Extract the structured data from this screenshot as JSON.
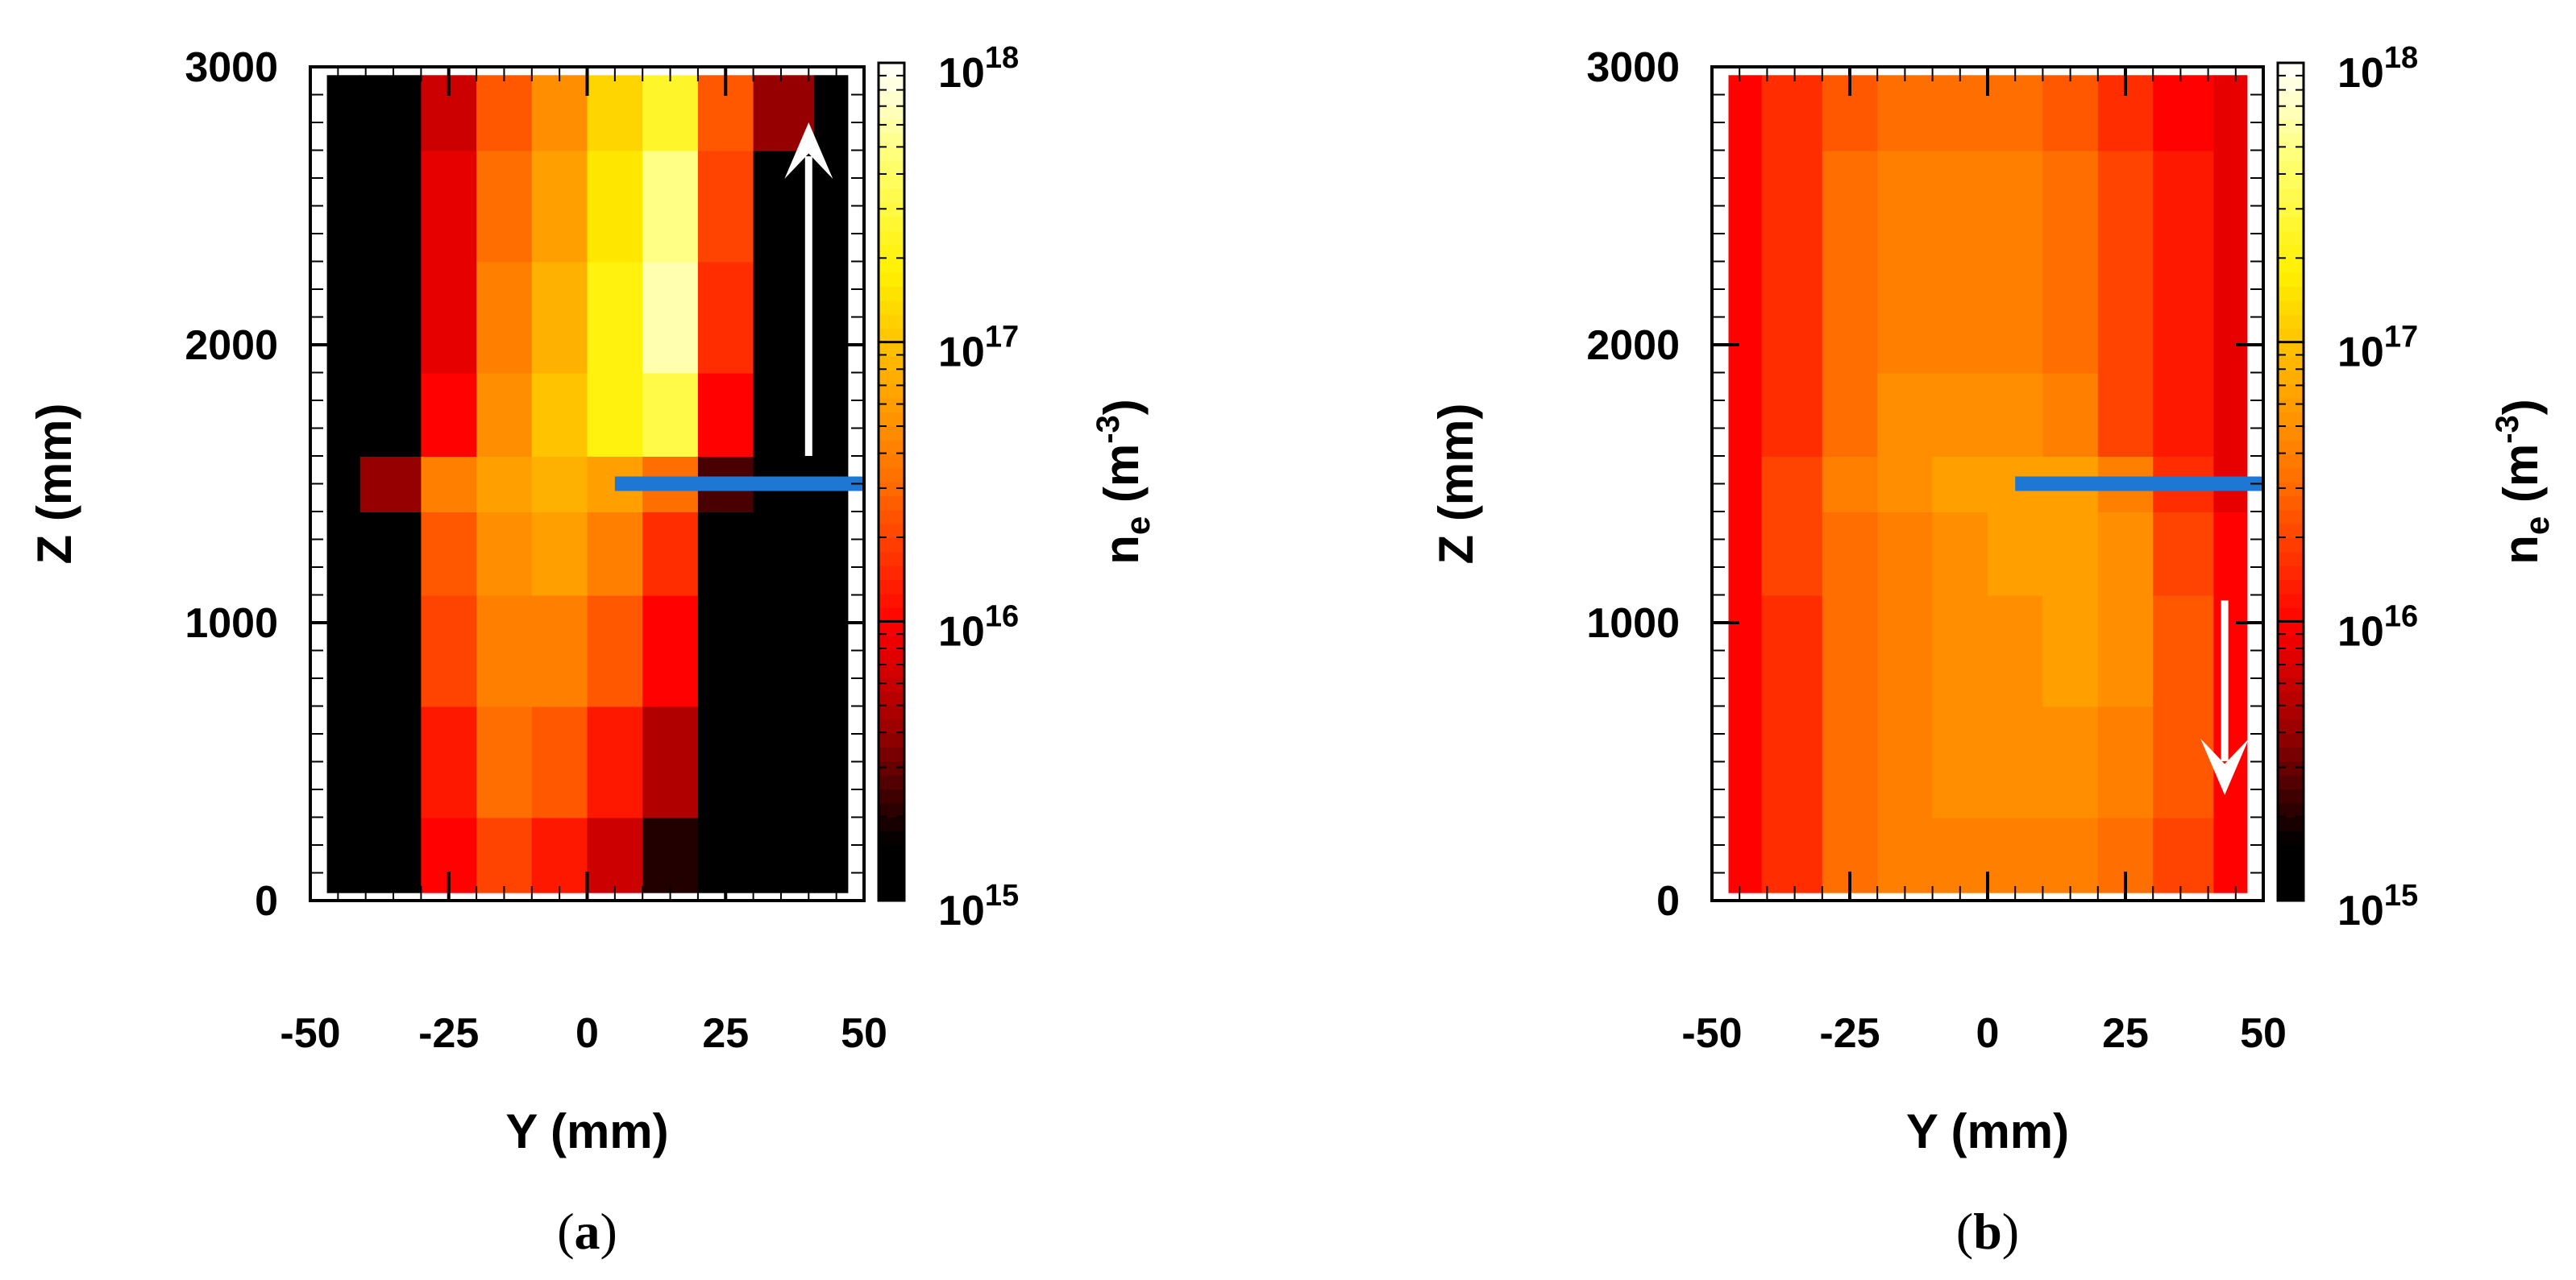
{
  "chart_data": [
    {
      "type": "heatmap",
      "panel_label": "a",
      "xlabel": "Y (mm)",
      "ylabel": "Z (mm)",
      "xlim": [
        -50,
        50
      ],
      "ylim": [
        0,
        3000
      ],
      "x_ticks": [
        -50,
        -25,
        0,
        25,
        50
      ],
      "y_ticks": [
        0,
        1000,
        2000,
        3000
      ],
      "colorbar": {
        "label_base": "n",
        "label_sub": "e",
        "label_unit_open": " (m",
        "label_unit_sup": "-3",
        "label_unit_close": ")",
        "scale": "log",
        "range": [
          1000000000000000.0,
          1e+18
        ],
        "ticks": [
          {
            "value": 1000000000000000.0,
            "base": "10",
            "exp": "15"
          },
          {
            "value": 1e+16,
            "base": "10",
            "exp": "16"
          },
          {
            "value": 1e+17,
            "base": "10",
            "exp": "17"
          },
          {
            "value": 1e+18,
            "base": "10",
            "exp": "18"
          }
        ]
      },
      "y_grid": [
        -47,
        -35,
        -25,
        -15,
        -5,
        5,
        15,
        25,
        35,
        47
      ],
      "z_grid": [
        100,
        500,
        900,
        1300,
        1500,
        1700,
        2100,
        2500,
        2900
      ],
      "log10_ne": [
        [
          14.8,
          14.8,
          16.0,
          16.3,
          16.1,
          15.8,
          15.3,
          14.8,
          14.8,
          14.8
        ],
        [
          14.8,
          14.9,
          16.1,
          16.5,
          16.4,
          16.1,
          15.7,
          14.9,
          14.8,
          14.8
        ],
        [
          14.8,
          15.0,
          16.3,
          16.6,
          16.6,
          16.4,
          16.0,
          15.0,
          14.8,
          14.8
        ],
        [
          14.8,
          15.2,
          16.4,
          16.7,
          16.8,
          16.6,
          16.2,
          15.2,
          14.8,
          14.8
        ],
        [
          14.8,
          15.6,
          16.6,
          16.8,
          16.9,
          16.8,
          16.5,
          15.4,
          14.8,
          14.8
        ],
        [
          14.8,
          15.0,
          16.0,
          16.7,
          17.0,
          17.3,
          17.5,
          16.0,
          14.8,
          14.8
        ],
        [
          14.8,
          14.9,
          15.9,
          16.6,
          16.9,
          17.3,
          17.8,
          16.2,
          14.9,
          14.8
        ],
        [
          14.8,
          14.9,
          15.9,
          16.5,
          16.8,
          17.2,
          17.7,
          16.3,
          15.2,
          14.9
        ],
        [
          14.8,
          14.8,
          15.8,
          16.4,
          16.7,
          17.1,
          17.4,
          16.4,
          15.6,
          15.0
        ]
      ],
      "annotations": [
        {
          "type": "probe_line",
          "color": "#1f77d4",
          "y_range": [
            5,
            50
          ],
          "z": 1500
        },
        {
          "type": "arrow",
          "color": "#ffffff",
          "direction": "up",
          "y": 40,
          "z_from": 1600,
          "z_to": 2800
        }
      ]
    },
    {
      "type": "heatmap",
      "panel_label": "b",
      "xlabel": "Y (mm)",
      "ylabel": "Z (mm)",
      "xlim": [
        -50,
        50
      ],
      "ylim": [
        0,
        3000
      ],
      "x_ticks": [
        -50,
        -25,
        0,
        25,
        50
      ],
      "y_ticks": [
        0,
        1000,
        2000,
        3000
      ],
      "colorbar": {
        "label_base": "n",
        "label_sub": "e",
        "label_unit_open": " (m",
        "label_unit_sup": "-3",
        "label_unit_close": ")",
        "scale": "log",
        "range": [
          1000000000000000.0,
          1e+18
        ],
        "ticks": [
          {
            "value": 1000000000000000.0,
            "base": "10",
            "exp": "15"
          },
          {
            "value": 1e+16,
            "base": "10",
            "exp": "16"
          },
          {
            "value": 1e+17,
            "base": "10",
            "exp": "17"
          },
          {
            "value": 1e+18,
            "base": "10",
            "exp": "18"
          }
        ]
      },
      "y_grid": [
        -47,
        -35,
        -25,
        -15,
        -5,
        5,
        15,
        25,
        35,
        47
      ],
      "z_grid": [
        100,
        500,
        900,
        1300,
        1500,
        1700,
        2100,
        2500,
        2900
      ],
      "log10_ne": [
        [
          16.0,
          16.2,
          16.5,
          16.6,
          16.6,
          16.6,
          16.6,
          16.5,
          16.3,
          16.0
        ],
        [
          16.0,
          16.2,
          16.5,
          16.6,
          16.7,
          16.7,
          16.7,
          16.6,
          16.4,
          16.0
        ],
        [
          16.0,
          16.2,
          16.5,
          16.6,
          16.7,
          16.7,
          16.8,
          16.7,
          16.4,
          16.0
        ],
        [
          16.0,
          16.3,
          16.5,
          16.6,
          16.7,
          16.8,
          16.8,
          16.7,
          16.3,
          16.0
        ],
        [
          16.0,
          16.3,
          16.6,
          16.7,
          16.8,
          16.8,
          16.8,
          16.6,
          16.2,
          15.9
        ],
        [
          16.0,
          16.2,
          16.5,
          16.7,
          16.7,
          16.7,
          16.6,
          16.3,
          16.1,
          15.9
        ],
        [
          16.0,
          16.2,
          16.5,
          16.6,
          16.6,
          16.6,
          16.5,
          16.3,
          16.1,
          15.9
        ],
        [
          16.0,
          16.2,
          16.5,
          16.6,
          16.6,
          16.6,
          16.5,
          16.3,
          16.1,
          15.9
        ],
        [
          16.0,
          16.2,
          16.4,
          16.5,
          16.5,
          16.5,
          16.4,
          16.2,
          16.0,
          15.9
        ]
      ],
      "annotations": [
        {
          "type": "probe_line",
          "color": "#1f77d4",
          "y_range": [
            5,
            50
          ],
          "z": 1500
        },
        {
          "type": "arrow",
          "color": "#ffffff",
          "direction": "down",
          "y": 43,
          "z_from": 1080,
          "z_to": 380
        }
      ]
    }
  ]
}
